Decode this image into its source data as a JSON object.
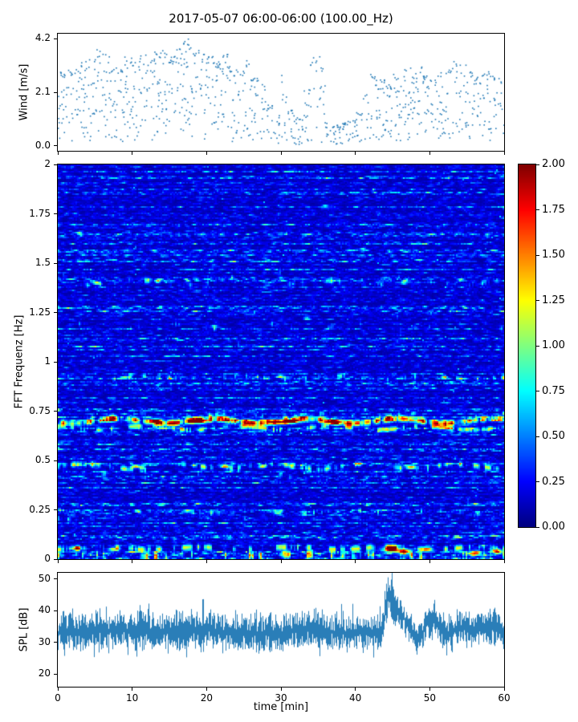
{
  "figure": {
    "title": "2017-05-07 06:00-06:00 (100.00_Hz)"
  },
  "chart_data": [
    {
      "type": "scatter",
      "name": "wind-speed",
      "ylabel": "Wind [m/s]",
      "ylim": [
        -0.2,
        4.4
      ],
      "ytick_labels": [
        "0.0",
        "2.1",
        "4.2"
      ],
      "ytick_values": [
        0.0,
        2.1,
        4.2
      ],
      "xlim": [
        0,
        60
      ],
      "marker_color": "#1f77b4",
      "envelope_bins": [
        [
          0,
          1,
          0.1,
          2.9,
          0.85
        ],
        [
          1,
          2,
          0.15,
          3.1,
          0.85
        ],
        [
          2,
          3,
          0.2,
          3.0,
          0.8
        ],
        [
          3,
          4,
          0.15,
          3.3,
          0.85
        ],
        [
          4,
          5,
          0.1,
          3.4,
          0.8
        ],
        [
          5,
          6,
          0.25,
          3.8,
          0.9
        ],
        [
          6,
          7,
          0.2,
          3.6,
          0.85
        ],
        [
          7,
          8,
          0.15,
          3.2,
          0.8
        ],
        [
          8,
          9,
          0.1,
          3.0,
          0.75
        ],
        [
          9,
          10,
          0.15,
          3.5,
          0.8
        ],
        [
          10,
          11,
          0.2,
          3.3,
          0.8
        ],
        [
          11,
          12,
          0.1,
          3.6,
          0.8
        ],
        [
          12,
          13,
          0.15,
          3.4,
          0.8
        ],
        [
          13,
          14,
          0.25,
          3.7,
          0.85
        ],
        [
          14,
          15,
          0.2,
          3.9,
          0.85
        ],
        [
          15,
          16,
          0.2,
          3.6,
          0.8
        ],
        [
          16,
          17,
          0.25,
          4.1,
          0.9
        ],
        [
          17,
          18,
          0.2,
          4.2,
          0.9
        ],
        [
          18,
          19,
          0.25,
          3.8,
          0.85
        ],
        [
          19,
          20,
          0.2,
          3.6,
          0.8
        ],
        [
          20,
          21,
          0.2,
          3.5,
          0.8
        ],
        [
          21,
          22,
          0.25,
          3.3,
          0.8
        ],
        [
          22,
          23,
          0.2,
          3.6,
          0.8
        ],
        [
          23,
          24,
          0.15,
          3.2,
          0.75
        ],
        [
          24,
          25,
          0.1,
          3.0,
          0.7
        ],
        [
          25,
          26,
          0.15,
          3.4,
          0.75
        ],
        [
          26,
          27,
          0.1,
          2.8,
          0.65
        ],
        [
          27,
          28,
          0.08,
          2.4,
          0.6
        ],
        [
          28,
          29,
          0.05,
          1.6,
          0.6
        ],
        [
          29,
          30,
          0.05,
          1.2,
          0.6
        ],
        [
          30,
          31,
          0.05,
          2.8,
          0.55
        ],
        [
          31,
          32,
          0.08,
          1.4,
          0.6
        ],
        [
          32,
          33,
          0.05,
          1.1,
          0.6
        ],
        [
          33,
          34,
          0.08,
          2.2,
          0.6
        ],
        [
          34,
          35,
          0.1,
          3.5,
          0.6
        ],
        [
          35,
          36,
          0.1,
          3.6,
          0.6
        ],
        [
          36,
          37,
          0.05,
          1.0,
          0.6
        ],
        [
          37,
          38,
          0.05,
          0.8,
          0.6
        ],
        [
          38,
          39,
          0.05,
          0.9,
          0.6
        ],
        [
          39,
          40,
          0.05,
          1.0,
          0.6
        ],
        [
          40,
          41,
          0.08,
          1.3,
          0.6
        ],
        [
          41,
          42,
          0.1,
          2.0,
          0.6
        ],
        [
          42,
          43,
          0.15,
          2.9,
          0.7
        ],
        [
          43,
          44,
          0.15,
          2.6,
          0.7
        ],
        [
          44,
          45,
          0.15,
          2.4,
          0.7
        ],
        [
          45,
          46,
          0.1,
          2.8,
          0.7
        ],
        [
          46,
          47,
          0.15,
          3.0,
          0.7
        ],
        [
          47,
          48,
          0.2,
          3.2,
          0.8
        ],
        [
          48,
          49,
          0.25,
          3.1,
          0.8
        ],
        [
          49,
          50,
          0.2,
          2.8,
          0.75
        ],
        [
          50,
          51,
          0.15,
          2.6,
          0.7
        ],
        [
          51,
          52,
          0.1,
          2.9,
          0.7
        ],
        [
          52,
          53,
          0.2,
          3.1,
          0.75
        ],
        [
          53,
          54,
          0.25,
          3.4,
          0.8
        ],
        [
          54,
          55,
          0.25,
          3.3,
          0.8
        ],
        [
          55,
          56,
          0.2,
          3.0,
          0.75
        ],
        [
          56,
          57,
          0.2,
          2.8,
          0.7
        ],
        [
          57,
          58,
          0.25,
          3.0,
          0.75
        ],
        [
          58,
          59,
          0.2,
          2.9,
          0.7
        ],
        [
          59,
          60,
          0.2,
          2.7,
          0.7
        ]
      ]
    },
    {
      "type": "heatmap",
      "name": "fft-spectrogram",
      "ylabel": "FFT Frequenz [Hz]",
      "ylim": [
        0,
        2
      ],
      "ytick_labels": [
        "0",
        "0.25",
        "0.5",
        "0.75",
        "1",
        "1.25",
        "1.5",
        "1.75",
        "2"
      ],
      "ytick_values": [
        0,
        0.25,
        0.5,
        0.75,
        1,
        1.25,
        1.5,
        1.75,
        2
      ],
      "xlim": [
        0,
        60
      ],
      "colormap": "jet",
      "vmin": 0,
      "vmax": 2,
      "bands": [
        [
          0.7,
          1.9,
          0.01,
          0.2,
          0.012
        ],
        [
          0.665,
          1.0,
          0.008,
          0.45,
          0.01
        ],
        [
          0.73,
          0.5,
          0.008,
          0.6,
          0.01
        ],
        [
          0.47,
          1.1,
          0.009,
          0.5,
          0.012
        ],
        [
          0.44,
          0.55,
          0.008,
          0.65,
          0.01
        ],
        [
          0.24,
          0.7,
          0.008,
          0.6,
          0.008
        ],
        [
          0.205,
          0.45,
          0.007,
          0.7,
          0.008
        ],
        [
          0.055,
          1.1,
          0.01,
          0.5,
          0.006
        ],
        [
          0.02,
          1.3,
          0.012,
          0.55,
          0.004
        ],
        [
          0.92,
          0.65,
          0.008,
          0.6,
          0.01
        ],
        [
          0.88,
          0.4,
          0.007,
          0.75,
          0.01
        ],
        [
          1.18,
          0.5,
          0.008,
          0.7,
          0.012
        ],
        [
          1.23,
          0.4,
          0.007,
          0.78,
          0.012
        ],
        [
          1.4,
          0.7,
          0.009,
          0.6,
          0.012
        ],
        [
          1.44,
          0.45,
          0.007,
          0.75,
          0.012
        ],
        [
          1.57,
          0.45,
          0.007,
          0.8,
          0.012
        ],
        [
          1.64,
          0.4,
          0.007,
          0.8,
          0.012
        ],
        [
          1.79,
          0.4,
          0.007,
          0.82,
          0.014
        ],
        [
          1.1,
          0.35,
          0.007,
          0.85,
          0.01
        ],
        [
          0.3,
          0.35,
          0.007,
          0.85,
          0.01
        ],
        [
          0.56,
          0.35,
          0.007,
          0.85,
          0.01
        ],
        [
          0.81,
          0.35,
          0.007,
          0.85,
          0.01
        ]
      ],
      "hotspots": [
        [
          19,
          0.7,
          2.0,
          1.2,
          0.012
        ],
        [
          29.5,
          0.695,
          2.0,
          1.5,
          0.012
        ],
        [
          31.5,
          0.7,
          1.9,
          0.8,
          0.01
        ],
        [
          13,
          0.7,
          1.8,
          0.8,
          0.01
        ],
        [
          37,
          0.695,
          1.9,
          1.0,
          0.01
        ],
        [
          22.5,
          0.47,
          1.5,
          0.6,
          0.008
        ],
        [
          10.5,
          0.47,
          1.4,
          0.5,
          0.008
        ],
        [
          47.5,
          0.465,
          1.5,
          0.7,
          0.008
        ],
        [
          27.5,
          0.47,
          1.3,
          0.5,
          0.008
        ],
        [
          5.2,
          1.4,
          1.1,
          0.5,
          0.008
        ],
        [
          13.5,
          1.41,
          1.0,
          0.4,
          0.008
        ],
        [
          46.5,
          1.4,
          0.9,
          0.4,
          0.008
        ],
        [
          44.8,
          0.05,
          1.9,
          1.0,
          0.015
        ],
        [
          46.5,
          0.04,
          1.7,
          0.8,
          0.012
        ],
        [
          49.5,
          0.05,
          1.6,
          0.8,
          0.012
        ],
        [
          2.5,
          0.055,
          1.3,
          0.8,
          0.01
        ],
        [
          7.5,
          0.05,
          1.2,
          0.6,
          0.01
        ],
        [
          56,
          0.03,
          1.4,
          0.8,
          0.012
        ],
        [
          59,
          0.04,
          1.5,
          0.7,
          0.012
        ],
        [
          17.5,
          0.245,
          1.0,
          0.5,
          0.007
        ],
        [
          9,
          0.92,
          1.0,
          0.5,
          0.007
        ],
        [
          30,
          0.925,
          0.9,
          0.5,
          0.007
        ],
        [
          52,
          0.92,
          0.9,
          0.4,
          0.007
        ],
        [
          41,
          1.57,
          0.8,
          0.4,
          0.007
        ],
        [
          3,
          1.65,
          0.7,
          0.4,
          0.007
        ],
        [
          36,
          1.79,
          0.7,
          0.4,
          0.007
        ],
        [
          21,
          1.18,
          0.8,
          0.4,
          0.007
        ],
        [
          33.5,
          1.22,
          0.7,
          0.4,
          0.007
        ]
      ],
      "colorbar": {
        "tick_labels": [
          "0.00",
          "0.25",
          "0.50",
          "0.75",
          "1.00",
          "1.25",
          "1.50",
          "1.75",
          "2.00"
        ],
        "tick_values": [
          0,
          0.25,
          0.5,
          0.75,
          1,
          1.25,
          1.5,
          1.75,
          2
        ],
        "vmin": 0,
        "vmax": 2
      }
    },
    {
      "type": "line",
      "name": "spl",
      "ylabel": "SPL [dB]",
      "xlabel": "time [min]",
      "ylim": [
        16,
        52
      ],
      "ytick_labels": [
        "20",
        "30",
        "40",
        "50"
      ],
      "ytick_values": [
        20,
        30,
        40,
        50
      ],
      "xlim": [
        0,
        60
      ],
      "xtick_labels": [
        "0",
        "10",
        "20",
        "30",
        "40",
        "50",
        "60"
      ],
      "xtick_values": [
        0,
        10,
        20,
        30,
        40,
        50,
        60
      ],
      "line_color": "#1f77b4",
      "envelope": [
        [
          0,
          33,
          5
        ],
        [
          2,
          34,
          5.5
        ],
        [
          4,
          33,
          5
        ],
        [
          6,
          34,
          5
        ],
        [
          8,
          33.5,
          5
        ],
        [
          10,
          34,
          5
        ],
        [
          12,
          33.5,
          5
        ],
        [
          14,
          33,
          5
        ],
        [
          16,
          33.5,
          5
        ],
        [
          18,
          34,
          5
        ],
        [
          20,
          34,
          5
        ],
        [
          22,
          33.5,
          5
        ],
        [
          24,
          33,
          5
        ],
        [
          26,
          33,
          5
        ],
        [
          28,
          33,
          5
        ],
        [
          30,
          33,
          5
        ],
        [
          32,
          33.5,
          5
        ],
        [
          34,
          34,
          5
        ],
        [
          36,
          33.5,
          4.5
        ],
        [
          38,
          33,
          4.5
        ],
        [
          40,
          33,
          4.5
        ],
        [
          42,
          33,
          4.5
        ],
        [
          43.5,
          33,
          4
        ],
        [
          44.1,
          40,
          6
        ],
        [
          44.4,
          46,
          5
        ],
        [
          44.8,
          44,
          5
        ],
        [
          45.5,
          40,
          4.5
        ],
        [
          46.5,
          38,
          4
        ],
        [
          47.5,
          34,
          4
        ],
        [
          48.3,
          31,
          3.5
        ],
        [
          49,
          33,
          4
        ],
        [
          50,
          37,
          4.5
        ],
        [
          50.8,
          37,
          4.5
        ],
        [
          51.5,
          35,
          4
        ],
        [
          52.5,
          33,
          4
        ],
        [
          53.5,
          34,
          4
        ],
        [
          54.5,
          35,
          4
        ],
        [
          55.5,
          34,
          4
        ],
        [
          56.5,
          34.5,
          4
        ],
        [
          57.5,
          35,
          4.5
        ],
        [
          58.5,
          35,
          4.5
        ],
        [
          59.3,
          34,
          4.5
        ],
        [
          60,
          33,
          4
        ]
      ]
    }
  ]
}
